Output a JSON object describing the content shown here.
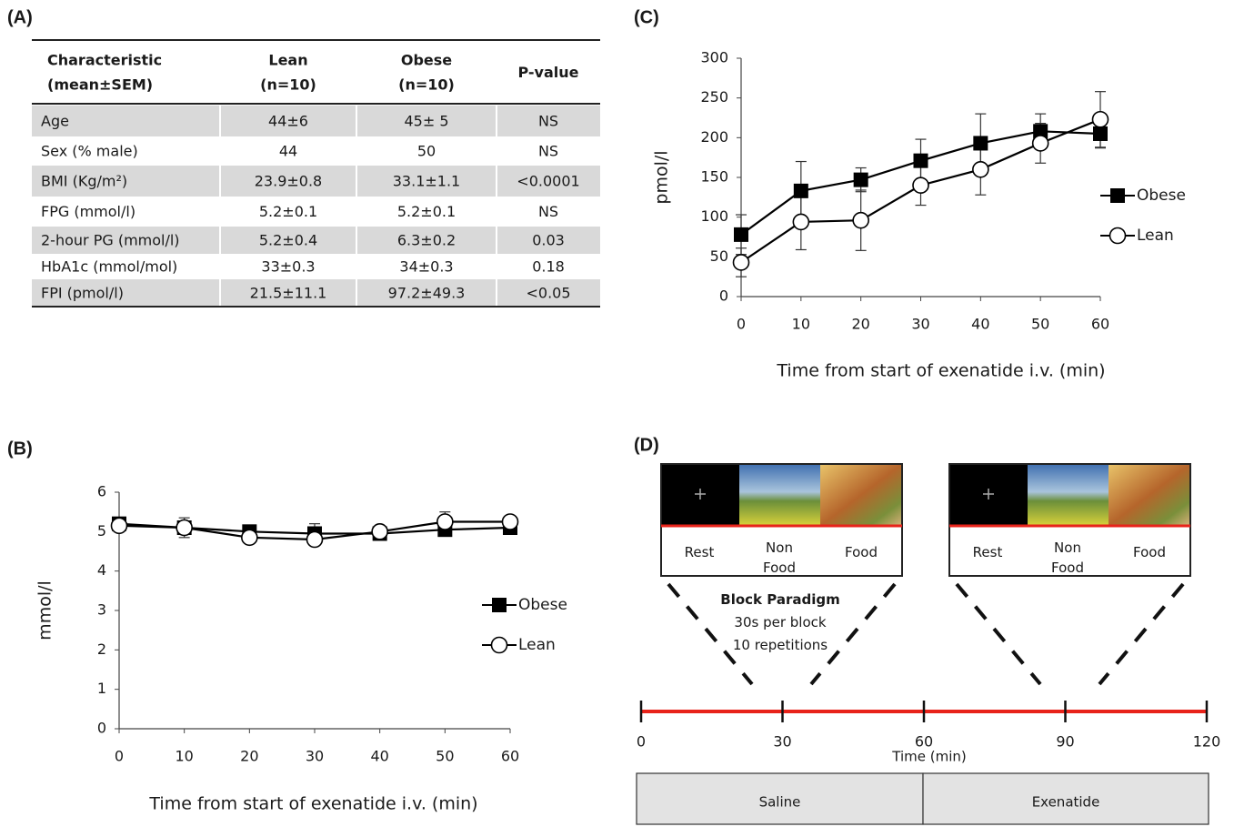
{
  "table": {
    "label": "(A)",
    "header": [
      [
        "Characteristic",
        "(mean±SEM)"
      ],
      [
        "Lean",
        "(n=10)"
      ],
      [
        "Obese",
        "(n=10)"
      ],
      [
        "P-value"
      ]
    ],
    "rows": [
      [
        "Age",
        "44±6",
        "45± 5",
        "NS"
      ],
      [
        "Sex (% male)",
        "44",
        "50",
        "NS"
      ],
      [
        "BMI (Kg/m²)",
        "23.9±0.8",
        "33.1±1.1",
        "<0.0001"
      ],
      [
        "FPG (mmol/l)",
        "5.2±0.1",
        "5.2±0.1",
        "NS"
      ],
      [
        "2-hour PG (mmol/l)",
        "5.2±0.4",
        "6.3±0.2",
        "0.03"
      ],
      [
        "HbA1c (mmol/mol)",
        "33±0.3",
        "34±0.3",
        "0.18"
      ],
      [
        "FPI (pmol/l)",
        "21.5±11.1",
        "97.2±49.3",
        "<0.05"
      ]
    ]
  },
  "chart_data": [
    {
      "type": "line",
      "label": "(B)",
      "x": [
        0,
        10,
        20,
        30,
        40,
        50,
        60
      ],
      "xlim": [
        0,
        60
      ],
      "xticks": [
        0,
        10,
        20,
        30,
        40,
        50,
        60
      ],
      "ylim": [
        0,
        6
      ],
      "yticks": [
        0,
        1,
        2,
        3,
        4,
        5,
        6
      ],
      "ylabel": "mmol/l",
      "xlabel": "Time from start of exenatide i.v. (min)",
      "legend": "right",
      "series": [
        {
          "name": "Obese",
          "color": "#000000",
          "marker": "square",
          "values": [
            5.2,
            5.1,
            5.0,
            4.95,
            4.95,
            5.05,
            5.1
          ],
          "errors": [
            0.1,
            0.1,
            0.1,
            0.25,
            0.1,
            0.1,
            0.1
          ]
        },
        {
          "name": "Lean",
          "color": "#000000",
          "marker": "circle",
          "values": [
            5.15,
            5.1,
            4.85,
            4.8,
            5.0,
            5.25,
            5.25
          ],
          "errors": [
            0.1,
            0.25,
            0.1,
            0.1,
            0.1,
            0.25,
            0.1
          ]
        }
      ]
    },
    {
      "type": "line",
      "label": "(C)",
      "x": [
        0,
        10,
        20,
        30,
        40,
        50,
        60
      ],
      "xlim": [
        0,
        60
      ],
      "xticks": [
        0,
        10,
        20,
        30,
        40,
        50,
        60
      ],
      "ylim": [
        0,
        300
      ],
      "yticks": [
        0,
        50,
        100,
        150,
        200,
        250,
        300
      ],
      "ylabel": "pmol/l",
      "xlabel": "Time from start of exenatide i.v. (min)",
      "legend": "right",
      "series": [
        {
          "name": "Obese",
          "color": "#000000",
          "marker": "square",
          "values": [
            78,
            133,
            147,
            171,
            193,
            208,
            205
          ],
          "errors": [
            25,
            37,
            15,
            27,
            37,
            22,
            18
          ]
        },
        {
          "name": "Lean",
          "color": "#000000",
          "marker": "circle",
          "values": [
            43,
            94,
            96,
            140,
            160,
            193,
            223
          ],
          "errors": [
            18,
            35,
            38,
            25,
            32,
            25,
            35
          ]
        }
      ]
    }
  ],
  "diagram": {
    "label": "(D)",
    "blocks": [
      {
        "stages": [
          [
            "Rest"
          ],
          [
            "Non",
            "Food"
          ],
          [
            "Food"
          ]
        ]
      },
      {
        "stages": [
          [
            "Rest"
          ],
          [
            "Non",
            "Food"
          ],
          [
            "Food"
          ]
        ]
      }
    ],
    "paradigm": [
      "Block Paradigm",
      "30s per block",
      "10 repetitions"
    ],
    "timeline": {
      "ticks": [
        0,
        30,
        60,
        90,
        120
      ],
      "label": "Time (min)"
    },
    "conditions": [
      "Saline",
      "Exenatide"
    ]
  }
}
